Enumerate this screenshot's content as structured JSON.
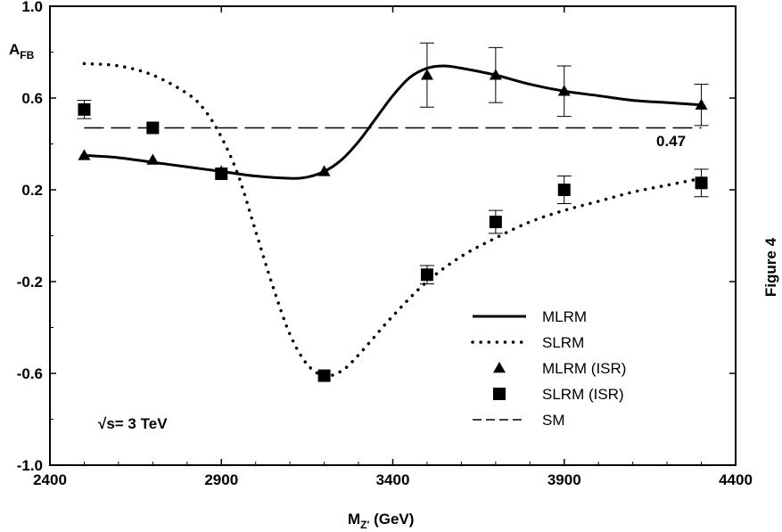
{
  "chart_data": {
    "type": "line",
    "xlabel": {
      "main": "M",
      "sub": "Z'",
      "rest": " (GeV)"
    },
    "ylabel": {
      "main": "A",
      "sub": "FB"
    },
    "xlim": [
      2400,
      4400
    ],
    "ylim": [
      -1.0,
      1.0
    ],
    "x_ticks": [
      2400,
      2900,
      3400,
      3900,
      4400
    ],
    "x_tick_labels": [
      "2400",
      "2900",
      "3400",
      "3900",
      "4400"
    ],
    "y_ticks": [
      -1.0,
      -0.6,
      -0.2,
      0.2,
      0.6,
      1.0
    ],
    "y_tick_labels": [
      "-1.0",
      "-0.6",
      "-0.2",
      "0.2",
      "0.6",
      "1.0"
    ],
    "grid": false,
    "legend_position": "bottom-right",
    "side_label": "Figure 4",
    "annotation": "√s=  3 TeV",
    "sm_value_label": "0.47",
    "series": [
      {
        "name": "MLRM",
        "style": "solid",
        "x": [
          2500,
          2600,
          2700,
          2800,
          2900,
          3000,
          3100,
          3150,
          3200,
          3250,
          3300,
          3350,
          3400,
          3450,
          3500,
          3550,
          3600,
          3700,
          3800,
          3900,
          4000,
          4100,
          4200,
          4300
        ],
        "y": [
          0.35,
          0.34,
          0.32,
          0.3,
          0.28,
          0.26,
          0.25,
          0.255,
          0.28,
          0.33,
          0.41,
          0.51,
          0.61,
          0.69,
          0.73,
          0.74,
          0.73,
          0.7,
          0.66,
          0.63,
          0.61,
          0.59,
          0.58,
          0.57
        ]
      },
      {
        "name": "SLRM",
        "style": "dotted",
        "x": [
          2500,
          2600,
          2700,
          2800,
          2850,
          2900,
          2950,
          3000,
          3050,
          3100,
          3150,
          3200,
          3250,
          3300,
          3400,
          3500,
          3600,
          3700,
          3800,
          3900,
          4000,
          4100,
          4200,
          4300
        ],
        "y": [
          0.75,
          0.74,
          0.7,
          0.62,
          0.55,
          0.43,
          0.26,
          0.02,
          -0.22,
          -0.43,
          -0.56,
          -0.61,
          -0.59,
          -0.52,
          -0.35,
          -0.2,
          -0.09,
          -0.01,
          0.06,
          0.11,
          0.15,
          0.19,
          0.22,
          0.25
        ]
      },
      {
        "name": "MLRM (ISR)",
        "style": "triangle",
        "x": [
          2500,
          2700,
          2900,
          3200,
          3500,
          3700,
          3900,
          4300
        ],
        "y": [
          0.35,
          0.33,
          0.28,
          0.28,
          0.7,
          0.7,
          0.63,
          0.57
        ],
        "err": [
          0.02,
          0.02,
          0.02,
          0.02,
          0.14,
          0.12,
          0.11,
          0.09
        ]
      },
      {
        "name": "SLRM (ISR)",
        "style": "square",
        "x": [
          2500,
          2700,
          2900,
          3200,
          3500,
          3700,
          3900,
          4300
        ],
        "y": [
          0.55,
          0.47,
          0.27,
          -0.61,
          -0.17,
          0.06,
          0.2,
          0.23
        ],
        "err": [
          0.04,
          0.02,
          0.02,
          0.02,
          0.04,
          0.05,
          0.06,
          0.06
        ]
      },
      {
        "name": "SM",
        "style": "dashed",
        "x": [
          2500,
          4300
        ],
        "y": [
          0.47,
          0.47
        ]
      }
    ]
  }
}
